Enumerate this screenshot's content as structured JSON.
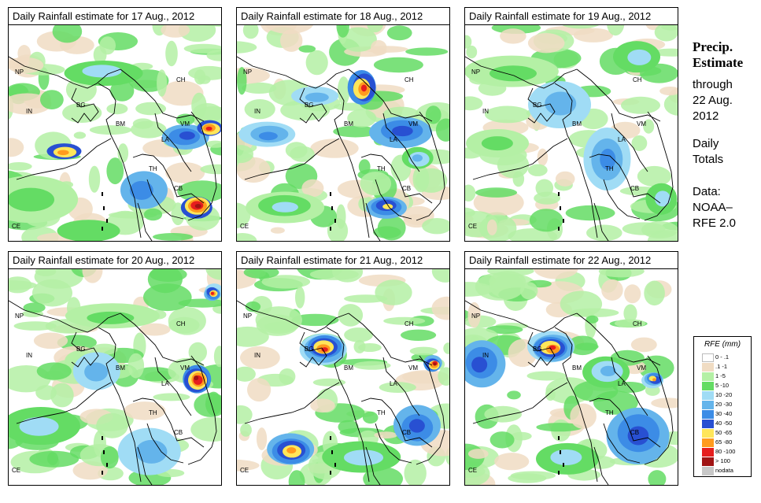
{
  "panels": [
    {
      "title": "Daily Rainfall estimate for  17 Aug., 2012"
    },
    {
      "title": "Daily Rainfall estimate for  18 Aug., 2012"
    },
    {
      "title": "Daily Rainfall estimate for  19 Aug., 2012"
    },
    {
      "title": "Daily Rainfall estimate for  20 Aug., 2012"
    },
    {
      "title": "Daily Rainfall estimate for  21 Aug., 2012"
    },
    {
      "title": "Daily Rainfall estimate for  22 Aug., 2012"
    }
  ],
  "country_labels": [
    "NP",
    "IN",
    "BG",
    "BM",
    "CH",
    "LA",
    "VM",
    "TH",
    "CB",
    "CE"
  ],
  "side": {
    "title_line1": "Precip.",
    "title_line2": "Estimate",
    "through": "through",
    "date_line1": "22 Aug.",
    "date_line2": "2012",
    "daily1": "Daily",
    "daily2": "Totals",
    "data1": "Data:",
    "data2": "NOAA–",
    "data3": "RFE 2.0"
  },
  "legend": {
    "title": "RFE (mm)",
    "items": [
      {
        "label": "0 - .1",
        "color": "#ffffff"
      },
      {
        "label": ".1 -1",
        "color": "#f0dcc3"
      },
      {
        "label": "1 -5",
        "color": "#b4f0a5"
      },
      {
        "label": "5 -10",
        "color": "#64dc64"
      },
      {
        "label": "10 -20",
        "color": "#a0dcf5"
      },
      {
        "label": "20 -30",
        "color": "#64b4eb"
      },
      {
        "label": "30 -40",
        "color": "#3c8ce6"
      },
      {
        "label": "40 -50",
        "color": "#2850d2"
      },
      {
        "label": "50 -65",
        "color": "#ffe65a"
      },
      {
        "label": "65 -80",
        "color": "#ff9b1e"
      },
      {
        "label": "80 -100",
        "color": "#e61e1e"
      },
      {
        "label": "> 100",
        "color": "#a01414"
      },
      {
        "label": "nodata",
        "color": "#c8c8c8"
      }
    ]
  }
}
